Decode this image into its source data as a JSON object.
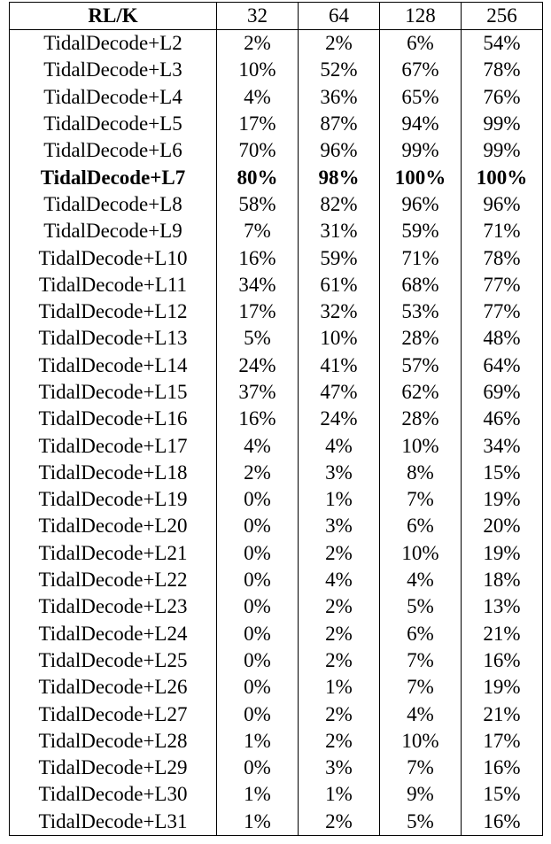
{
  "table": {
    "header": [
      "RL/K",
      "32",
      "64",
      "128",
      "256"
    ],
    "bold_row_index": 5,
    "rows": [
      [
        "TidalDecode+L2",
        "2%",
        "2%",
        "6%",
        "54%"
      ],
      [
        "TidalDecode+L3",
        "10%",
        "52%",
        "67%",
        "78%"
      ],
      [
        "TidalDecode+L4",
        "4%",
        "36%",
        "65%",
        "76%"
      ],
      [
        "TidalDecode+L5",
        "17%",
        "87%",
        "94%",
        "99%"
      ],
      [
        "TidalDecode+L6",
        "70%",
        "96%",
        "99%",
        "99%"
      ],
      [
        "TidalDecode+L7",
        "80%",
        "98%",
        "100%",
        "100%"
      ],
      [
        "TidalDecode+L8",
        "58%",
        "82%",
        "96%",
        "96%"
      ],
      [
        "TidalDecode+L9",
        "7%",
        "31%",
        "59%",
        "71%"
      ],
      [
        "TidalDecode+L10",
        "16%",
        "59%",
        "71%",
        "78%"
      ],
      [
        "TidalDecode+L11",
        "34%",
        "61%",
        "68%",
        "77%"
      ],
      [
        "TidalDecode+L12",
        "17%",
        "32%",
        "53%",
        "77%"
      ],
      [
        "TidalDecode+L13",
        "5%",
        "10%",
        "28%",
        "48%"
      ],
      [
        "TidalDecode+L14",
        "24%",
        "41%",
        "57%",
        "64%"
      ],
      [
        "TidalDecode+L15",
        "37%",
        "47%",
        "62%",
        "69%"
      ],
      [
        "TidalDecode+L16",
        "16%",
        "24%",
        "28%",
        "46%"
      ],
      [
        "TidalDecode+L17",
        "4%",
        "4%",
        "10%",
        "34%"
      ],
      [
        "TidalDecode+L18",
        "2%",
        "3%",
        "8%",
        "15%"
      ],
      [
        "TidalDecode+L19",
        "0%",
        "1%",
        "7%",
        "19%"
      ],
      [
        "TidalDecode+L20",
        "0%",
        "3%",
        "6%",
        "20%"
      ],
      [
        "TidalDecode+L21",
        "0%",
        "2%",
        "10%",
        "19%"
      ],
      [
        "TidalDecode+L22",
        "0%",
        "4%",
        "4%",
        "18%"
      ],
      [
        "TidalDecode+L23",
        "0%",
        "2%",
        "5%",
        "13%"
      ],
      [
        "TidalDecode+L24",
        "0%",
        "2%",
        "6%",
        "21%"
      ],
      [
        "TidalDecode+L25",
        "0%",
        "2%",
        "7%",
        "16%"
      ],
      [
        "TidalDecode+L26",
        "0%",
        "1%",
        "7%",
        "19%"
      ],
      [
        "TidalDecode+L27",
        "0%",
        "2%",
        "4%",
        "21%"
      ],
      [
        "TidalDecode+L28",
        "1%",
        "2%",
        "10%",
        "17%"
      ],
      [
        "TidalDecode+L29",
        "0%",
        "3%",
        "7%",
        "16%"
      ],
      [
        "TidalDecode+L30",
        "1%",
        "1%",
        "9%",
        "15%"
      ],
      [
        "TidalDecode+L31",
        "1%",
        "2%",
        "5%",
        "16%"
      ]
    ]
  }
}
